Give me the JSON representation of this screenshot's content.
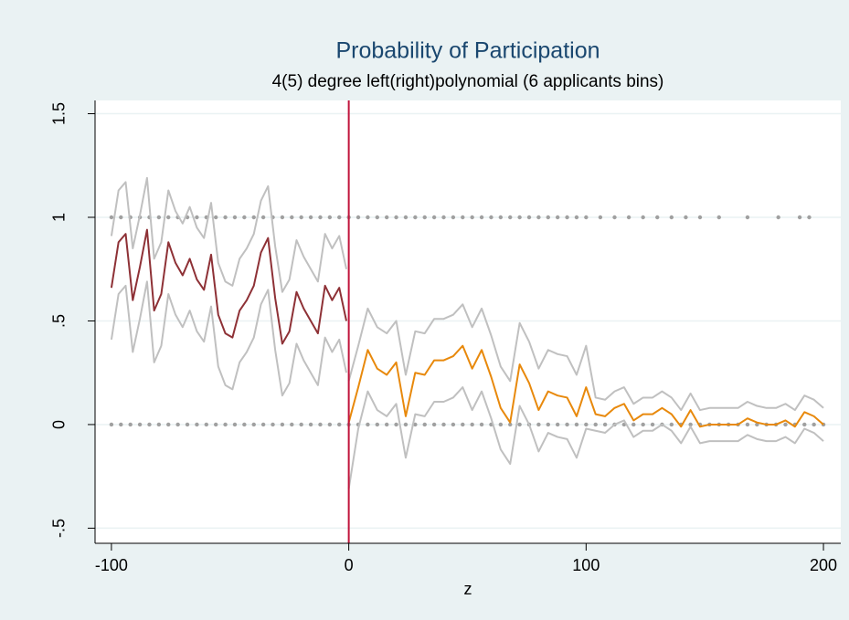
{
  "chart_data": {
    "type": "line",
    "title": "Probability of Participation",
    "subtitle": "4(5) degree left(right)polynomial (6 applicants bins)",
    "x_label": "z",
    "xlim": [
      -106.9,
      207.3
    ],
    "ylim": [
      -0.573,
      1.564
    ],
    "xticks": [
      -100,
      0,
      100,
      200
    ],
    "yticks": [
      {
        "value": -0.5,
        "label": "-.5"
      },
      0,
      {
        "value": 0.5,
        "label": ".5"
      },
      1,
      {
        "value": 1.5,
        "label": "1.5"
      }
    ],
    "grid": true,
    "cutoff": 0,
    "cutoff_color": "#c0143c",
    "series": [
      {
        "mark": "dot",
        "color": "#a0a0a0",
        "x": [
          -100,
          -96,
          -92,
          -88,
          -84,
          -80,
          -76,
          -72,
          -68,
          -64,
          -60,
          -56,
          -52,
          -48,
          -44,
          -40,
          -36,
          -32,
          -28,
          -24,
          -20,
          -16,
          -12,
          -8,
          -4,
          0,
          4,
          8,
          12,
          16,
          20,
          24,
          28,
          32,
          36,
          40,
          44,
          48,
          52,
          56,
          60,
          64,
          68,
          72,
          76,
          80,
          84,
          88,
          92,
          96,
          100,
          106,
          112,
          118,
          124,
          130,
          136,
          142,
          148,
          156,
          168,
          181,
          190,
          194
        ],
        "values": [
          1,
          1,
          1,
          1,
          1,
          1,
          1,
          1,
          1,
          1,
          1,
          1,
          1,
          1,
          1,
          1,
          1,
          1,
          1,
          1,
          1,
          1,
          1,
          1,
          1,
          1,
          1,
          1,
          1,
          1,
          1,
          1,
          1,
          1,
          1,
          1,
          1,
          1,
          1,
          1,
          1,
          1,
          1,
          1,
          1,
          1,
          1,
          1,
          1,
          1,
          1,
          1,
          1,
          1,
          1,
          1,
          1,
          1,
          1,
          1,
          1,
          1,
          1,
          1
        ]
      },
      {
        "mark": "dot",
        "color": "#a0a0a0",
        "x": [
          -100,
          -96,
          -92,
          -88,
          -84,
          -80,
          -76,
          -72,
          -68,
          -64,
          -60,
          -56,
          -52,
          -48,
          -44,
          -40,
          -36,
          -32,
          -28,
          -24,
          -20,
          -16,
          -12,
          -8,
          -4,
          0,
          4,
          8,
          12,
          16,
          20,
          24,
          28,
          32,
          36,
          40,
          44,
          48,
          52,
          56,
          60,
          64,
          68,
          72,
          76,
          80,
          84,
          88,
          92,
          96,
          100,
          104,
          108,
          112,
          116,
          120,
          124,
          128,
          132,
          136,
          140,
          144,
          148,
          152,
          156,
          160,
          164,
          168,
          172,
          176,
          180,
          184,
          188,
          192,
          196,
          200
        ],
        "values": [
          0,
          0,
          0,
          0,
          0,
          0,
          0,
          0,
          0,
          0,
          0,
          0,
          0,
          0,
          0,
          0,
          0,
          0,
          0,
          0,
          0,
          0,
          0,
          0,
          0,
          0,
          0,
          0,
          0,
          0,
          0,
          0,
          0,
          0,
          0,
          0,
          0,
          0,
          0,
          0,
          0,
          0,
          0,
          0,
          0,
          0,
          0,
          0,
          0,
          0,
          0,
          0,
          0,
          0,
          0,
          0,
          0,
          0,
          0,
          0,
          0,
          0,
          0,
          0,
          0,
          0,
          0,
          0,
          0,
          0,
          0,
          0,
          0,
          0,
          0,
          0
        ]
      },
      {
        "mark": "line",
        "color": "#c0c0c0",
        "x": [
          -100,
          -97,
          -94,
          -91,
          -88,
          -85,
          -82,
          -79,
          -76,
          -73,
          -70,
          -67,
          -64,
          -61,
          -58,
          -55,
          -52,
          -49,
          -46,
          -43,
          -40,
          -37,
          -34,
          -31,
          -28,
          -25,
          -22,
          -19,
          -16,
          -13,
          -10,
          -7,
          -4,
          -1
        ],
        "values": [
          0.91,
          1.13,
          1.17,
          0.85,
          1.01,
          1.19,
          0.8,
          0.88,
          1.13,
          1.03,
          0.97,
          1.05,
          0.95,
          0.9,
          1.07,
          0.78,
          0.69,
          0.67,
          0.8,
          0.85,
          0.92,
          1.08,
          1.15,
          0.86,
          0.64,
          0.7,
          0.89,
          0.81,
          0.75,
          0.69,
          0.92,
          0.85,
          0.91,
          0.75
        ]
      },
      {
        "mark": "line",
        "color": "#c0c0c0",
        "x": [
          -100,
          -97,
          -94,
          -91,
          -88,
          -85,
          -82,
          -79,
          -76,
          -73,
          -70,
          -67,
          -64,
          -61,
          -58,
          -55,
          -52,
          -49,
          -46,
          -43,
          -40,
          -37,
          -34,
          -31,
          -28,
          -25,
          -22,
          -19,
          -16,
          -13,
          -10,
          -7,
          -4,
          -1
        ],
        "values": [
          0.41,
          0.63,
          0.67,
          0.35,
          0.51,
          0.69,
          0.3,
          0.38,
          0.63,
          0.53,
          0.47,
          0.55,
          0.45,
          0.4,
          0.57,
          0.28,
          0.19,
          0.17,
          0.3,
          0.35,
          0.42,
          0.58,
          0.65,
          0.36,
          0.14,
          0.2,
          0.39,
          0.31,
          0.25,
          0.19,
          0.42,
          0.35,
          0.41,
          0.25
        ]
      },
      {
        "mark": "line",
        "color": "#c0c0c0",
        "x": [
          0,
          4,
          8,
          12,
          16,
          20,
          24,
          28,
          32,
          36,
          40,
          44,
          48,
          52,
          56,
          60,
          64,
          68,
          72,
          76,
          80,
          84,
          88,
          92,
          96,
          100,
          104,
          108,
          112,
          116,
          120,
          124,
          128,
          132,
          136,
          140,
          144,
          148,
          152,
          156,
          160,
          164,
          168,
          172,
          176,
          180,
          184,
          188,
          192,
          196,
          200
        ],
        "values": [
          0.21,
          0.38,
          0.56,
          0.47,
          0.44,
          0.5,
          0.24,
          0.45,
          0.44,
          0.51,
          0.51,
          0.53,
          0.58,
          0.47,
          0.56,
          0.43,
          0.28,
          0.21,
          0.49,
          0.4,
          0.27,
          0.36,
          0.34,
          0.33,
          0.24,
          0.38,
          0.13,
          0.12,
          0.16,
          0.18,
          0.1,
          0.13,
          0.13,
          0.16,
          0.13,
          0.07,
          0.15,
          0.07,
          0.08,
          0.08,
          0.08,
          0.08,
          0.11,
          0.09,
          0.08,
          0.08,
          0.1,
          0.07,
          0.14,
          0.12,
          0.08
        ]
      },
      {
        "mark": "line",
        "color": "#c0c0c0",
        "x": [
          0,
          4,
          8,
          12,
          16,
          20,
          24,
          28,
          32,
          36,
          40,
          44,
          48,
          52,
          56,
          60,
          64,
          68,
          72,
          76,
          80,
          84,
          88,
          92,
          96,
          100,
          104,
          108,
          112,
          116,
          120,
          124,
          128,
          132,
          136,
          140,
          144,
          148,
          152,
          156,
          160,
          164,
          168,
          172,
          176,
          180,
          184,
          188,
          192,
          196,
          200
        ],
        "values": [
          -0.31,
          -0.02,
          0.16,
          0.07,
          0.04,
          0.1,
          -0.16,
          0.05,
          0.04,
          0.11,
          0.11,
          0.13,
          0.18,
          0.07,
          0.16,
          0.03,
          -0.12,
          -0.19,
          0.09,
          0,
          -0.13,
          -0.04,
          -0.06,
          -0.07,
          -0.16,
          -0.02,
          -0.03,
          -0.04,
          0,
          0.02,
          -0.06,
          -0.03,
          -0.03,
          0,
          -0.03,
          -0.09,
          -0.01,
          -0.09,
          -0.08,
          -0.08,
          -0.08,
          -0.08,
          -0.05,
          -0.07,
          -0.08,
          -0.08,
          -0.06,
          -0.09,
          -0.02,
          -0.04,
          -0.08
        ]
      },
      {
        "mark": "line",
        "color": "#8e3136",
        "x": [
          -100,
          -97,
          -94,
          -91,
          -88,
          -85,
          -82,
          -79,
          -76,
          -73,
          -70,
          -67,
          -64,
          -61,
          -58,
          -55,
          -52,
          -49,
          -46,
          -43,
          -40,
          -37,
          -34,
          -31,
          -28,
          -25,
          -22,
          -19,
          -16,
          -13,
          -10,
          -7,
          -4,
          -1
        ],
        "values": [
          0.66,
          0.88,
          0.92,
          0.6,
          0.76,
          0.94,
          0.55,
          0.63,
          0.88,
          0.78,
          0.72,
          0.8,
          0.7,
          0.65,
          0.82,
          0.53,
          0.44,
          0.42,
          0.55,
          0.6,
          0.67,
          0.83,
          0.9,
          0.61,
          0.39,
          0.45,
          0.64,
          0.56,
          0.5,
          0.44,
          0.67,
          0.6,
          0.66,
          0.5
        ]
      },
      {
        "mark": "line",
        "color": "#e8890c",
        "x": [
          0,
          4,
          8,
          12,
          16,
          20,
          24,
          28,
          32,
          36,
          40,
          44,
          48,
          52,
          56,
          60,
          64,
          68,
          72,
          76,
          80,
          84,
          88,
          92,
          96,
          100,
          104,
          108,
          112,
          116,
          120,
          124,
          128,
          132,
          136,
          140,
          144,
          148,
          152,
          156,
          160,
          164,
          168,
          172,
          176,
          180,
          184,
          188,
          192,
          196,
          200
        ],
        "values": [
          0.01,
          0.18,
          0.36,
          0.27,
          0.24,
          0.3,
          0.04,
          0.25,
          0.24,
          0.31,
          0.31,
          0.33,
          0.38,
          0.27,
          0.36,
          0.23,
          0.08,
          0.01,
          0.29,
          0.2,
          0.07,
          0.16,
          0.14,
          0.13,
          0.04,
          0.18,
          0.05,
          0.04,
          0.08,
          0.1,
          0.02,
          0.05,
          0.05,
          0.08,
          0.05,
          -0.01,
          0.07,
          -0.01,
          0,
          0,
          0,
          0,
          0.03,
          0.01,
          0,
          0,
          0.02,
          -0.01,
          0.06,
          0.04,
          0
        ]
      }
    ]
  }
}
